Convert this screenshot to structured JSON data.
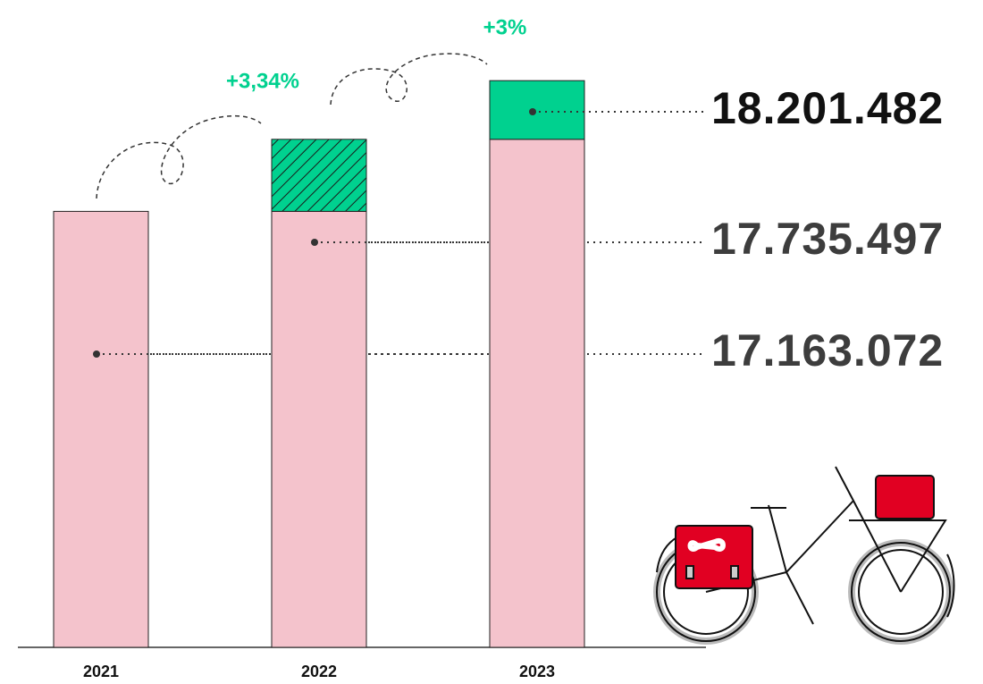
{
  "chart_data": {
    "type": "bar",
    "categories": [
      "2021",
      "2022",
      "2023"
    ],
    "values": [
      17163072,
      17735497,
      18201482
    ],
    "value_labels": [
      "17.163.072",
      "17.735.497",
      "18.201.482"
    ],
    "growth_labels": [
      "+3,34%",
      "+3%"
    ],
    "color": "#f4c3cc",
    "increase_color": "#00d18f",
    "hatched": [
      false,
      true,
      false
    ],
    "ylim": [
      13700000,
      18700000
    ]
  }
}
